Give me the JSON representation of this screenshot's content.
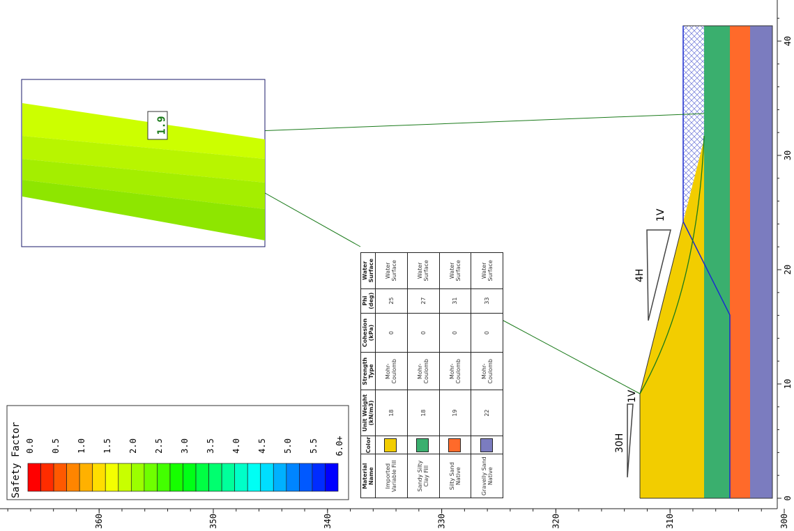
{
  "legend": {
    "title": "Safety Factor",
    "labels": [
      "0.0",
      "0.5",
      "1.0",
      "1.5",
      "2.0",
      "2.5",
      "3.0",
      "3.5",
      "4.0",
      "4.5",
      "5.0",
      "5.5",
      "6.0+"
    ]
  },
  "safety_factor": "1.9",
  "axes": {
    "distance_ticks": [
      0,
      10,
      20,
      30,
      40
    ],
    "elevation_ticks": [
      300,
      310,
      320,
      330,
      340,
      350,
      360
    ]
  },
  "slope_labels": {
    "upper_v": "1V",
    "upper_h": "4H",
    "lower_v": "1V",
    "lower_h": "30H"
  },
  "table": {
    "headers": [
      "Material Name",
      "Color",
      "Unit Weight (kN/m3)",
      "Strength Type",
      "Cohesion (kPa)",
      "Phi (deg)",
      "Water Surface"
    ],
    "rows": [
      {
        "name": "Imported Variable Fill",
        "color": "#f2cd00",
        "unit_weight": 18,
        "strength": "Mohr-Coulomb",
        "cohesion": 0,
        "phi": 25,
        "water": "Water Surface"
      },
      {
        "name": "Sandy Silty Clay Fill",
        "color": "#3aaf6e",
        "unit_weight": 18,
        "strength": "Mohr-Coulomb",
        "cohesion": 0,
        "phi": 27,
        "water": "Water Surface"
      },
      {
        "name": "Silty Sand Native",
        "color": "#ff6a2a",
        "unit_weight": 19,
        "strength": "Mohr-Coulomb",
        "cohesion": 0,
        "phi": 31,
        "water": "Water Surface"
      },
      {
        "name": "Gravelly Sand Native",
        "color": "#7b7cbf",
        "unit_weight": 22,
        "strength": "Mohr-Coulomb",
        "cohesion": 0,
        "phi": 33,
        "water": "Water Surface"
      }
    ]
  }
}
